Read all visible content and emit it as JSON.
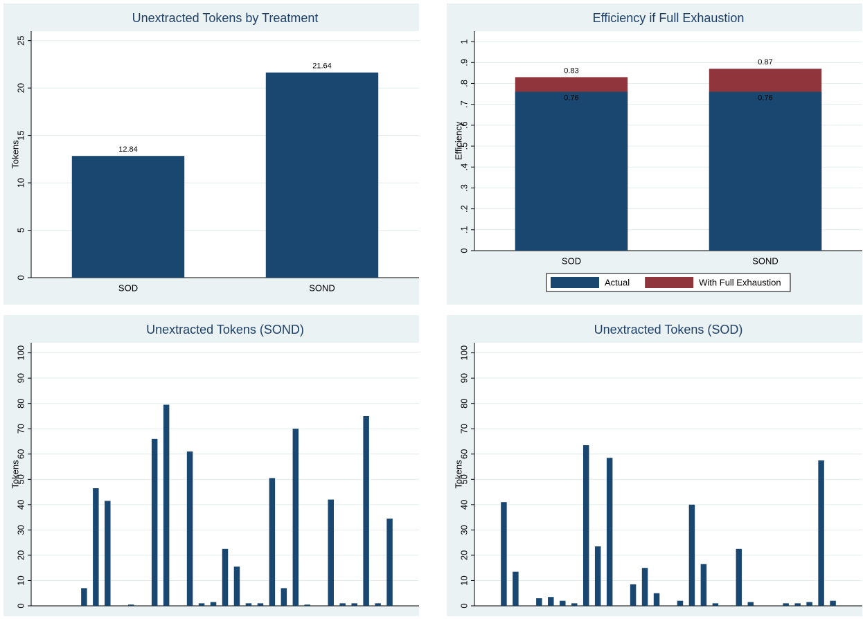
{
  "chart_data": [
    {
      "type": "bar",
      "title": "Unextracted Tokens by Treatment",
      "ylabel": "Tokens",
      "categories": [
        "SOD",
        "SOND"
      ],
      "values": [
        12.84,
        21.64
      ],
      "color": "#1a476f",
      "ylim": [
        0,
        26
      ],
      "yticks": [
        0,
        5,
        10,
        15,
        20,
        25
      ],
      "grid": true,
      "data_labels": true
    },
    {
      "type": "overlay_bar",
      "title": "Efficiency if Full Exhaustion",
      "ylabel": "Efficiency",
      "categories": [
        "SOD",
        "SOND"
      ],
      "series": [
        {
          "name": "Actual",
          "color": "#1a476f",
          "values": [
            0.76,
            0.76
          ]
        },
        {
          "name": "With Full Exhaustion",
          "color": "#90353b",
          "values": [
            0.83,
            0.87
          ]
        }
      ],
      "ylim": [
        0,
        1.05
      ],
      "yticks": [
        0,
        {
          "value": 0.1,
          "label": ".1"
        },
        {
          "value": 0.2,
          "label": ".2"
        },
        {
          "value": 0.3,
          "label": ".3"
        },
        {
          "value": 0.4,
          "label": ".4"
        },
        {
          "value": 0.5,
          "label": ".5"
        },
        {
          "value": 0.6,
          "label": ".6"
        },
        {
          "value": 0.7,
          "label": ".7"
        },
        {
          "value": 0.8,
          "label": ".8"
        },
        {
          "value": 0.9,
          "label": ".9"
        },
        1
      ],
      "grid": true,
      "data_labels": true,
      "legend": "bottom"
    },
    {
      "type": "bar",
      "title": "Unextracted Tokens (SOND)",
      "ylabel": "Tokens",
      "categories": [
        null,
        null,
        null,
        null,
        null,
        null,
        null,
        null,
        null,
        null,
        null,
        null,
        null,
        null,
        null,
        null,
        null,
        null,
        null,
        null,
        null,
        null,
        null,
        null,
        null,
        null,
        null,
        null,
        null,
        null,
        null,
        null,
        null
      ],
      "values": [
        0,
        0,
        0,
        0,
        7,
        46.5,
        41.5,
        0,
        0.5,
        0,
        66,
        79.5,
        0,
        61,
        1,
        1.5,
        22.5,
        15.5,
        1,
        1,
        50.5,
        7,
        70,
        0.5,
        0,
        42,
        1,
        1,
        75,
        1,
        34.5,
        0,
        0
      ],
      "color": "#1a476f",
      "ylim": [
        0,
        104
      ],
      "yticks": [
        0,
        10,
        20,
        30,
        40,
        50,
        60,
        70,
        80,
        90,
        100
      ],
      "grid": true,
      "data_labels": false
    },
    {
      "type": "bar",
      "title": "Unextracted Tokens (SOD)",
      "ylabel": "Tokens",
      "categories": [
        null,
        null,
        null,
        null,
        null,
        null,
        null,
        null,
        null,
        null,
        null,
        null,
        null,
        null,
        null,
        null,
        null,
        null,
        null,
        null,
        null,
        null,
        null,
        null,
        null,
        null,
        null,
        null,
        null,
        null,
        null,
        null,
        null
      ],
      "values": [
        0,
        0,
        41,
        13.5,
        0,
        3,
        3.5,
        2,
        1,
        63.5,
        23.5,
        58.5,
        0,
        8.5,
        15,
        5,
        0,
        2,
        40,
        16.5,
        1,
        0,
        22.5,
        1.5,
        0,
        0,
        1,
        1,
        1.5,
        57.5,
        2,
        0,
        0
      ],
      "color": "#1a476f",
      "ylim": [
        0,
        104
      ],
      "yticks": [
        0,
        10,
        20,
        30,
        40,
        50,
        60,
        70,
        80,
        90,
        100
      ],
      "grid": true,
      "data_labels": false
    }
  ]
}
